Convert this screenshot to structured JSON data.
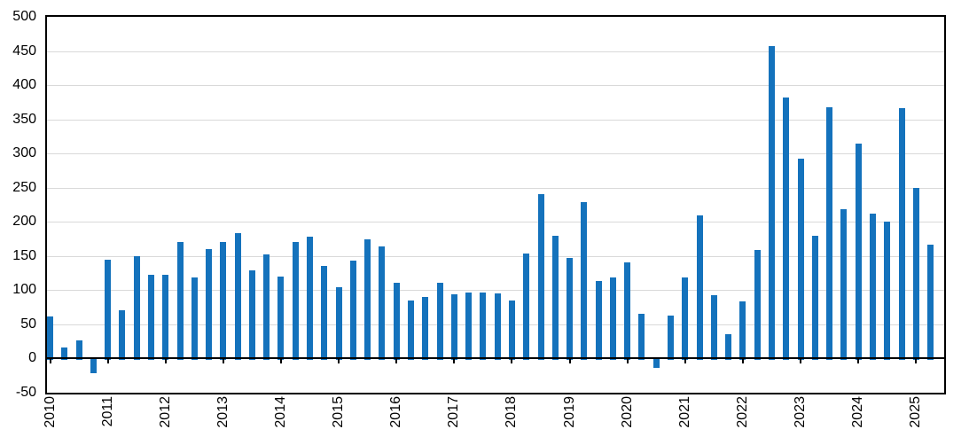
{
  "chart_data": {
    "type": "bar",
    "title": "",
    "xlabel": "",
    "ylabel": "",
    "ylim": [
      -50,
      500
    ],
    "ytick_step": 50,
    "grid": true,
    "legend": "none",
    "y_tick_labels": [
      "500",
      "450",
      "400",
      "350",
      "300",
      "250",
      "200",
      "150",
      "100",
      "50",
      "0",
      "-50"
    ],
    "x_tick_labels": [
      "2010",
      "2011",
      "2012",
      "2013",
      "2014",
      "2015",
      "2016",
      "2017",
      "2018",
      "2019",
      "2020",
      "2021",
      "2022",
      "2023",
      "2024",
      "2025"
    ],
    "bars_per_year": 4,
    "series": [
      {
        "year": "2010",
        "values": [
          61,
          16,
          26,
          -21
        ]
      },
      {
        "year": "2011",
        "values": [
          145,
          71,
          150,
          122
        ]
      },
      {
        "year": "2012",
        "values": [
          123,
          171,
          119,
          160
        ]
      },
      {
        "year": "2013",
        "values": [
          171,
          183,
          129,
          152
        ]
      },
      {
        "year": "2014",
        "values": [
          120,
          171,
          178,
          136
        ]
      },
      {
        "year": "2015",
        "values": [
          104,
          143,
          174,
          164
        ]
      },
      {
        "year": "2016",
        "values": [
          111,
          85,
          90,
          111
        ]
      },
      {
        "year": "2017",
        "values": [
          94,
          97,
          97,
          95
        ]
      },
      {
        "year": "2018",
        "values": [
          85,
          154,
          241,
          179
        ]
      },
      {
        "year": "2019",
        "values": [
          147,
          229,
          114,
          119
        ]
      },
      {
        "year": "2020",
        "values": [
          141,
          65,
          -14,
          63
        ]
      },
      {
        "year": "2021",
        "values": [
          118,
          210,
          93,
          35
        ]
      },
      {
        "year": "2022",
        "values": [
          83,
          159,
          457,
          382
        ]
      },
      {
        "year": "2023",
        "values": [
          292,
          179,
          368,
          218
        ]
      },
      {
        "year": "2024",
        "values": [
          315,
          212,
          201,
          366
        ]
      },
      {
        "year": "2025",
        "values": [
          249,
          167
        ]
      }
    ],
    "colors": {
      "bar": "#1472BC",
      "gridline": "#D9D9D9",
      "axis": "#000000",
      "label_text": "#000000",
      "background": "#FFFFFF"
    }
  }
}
